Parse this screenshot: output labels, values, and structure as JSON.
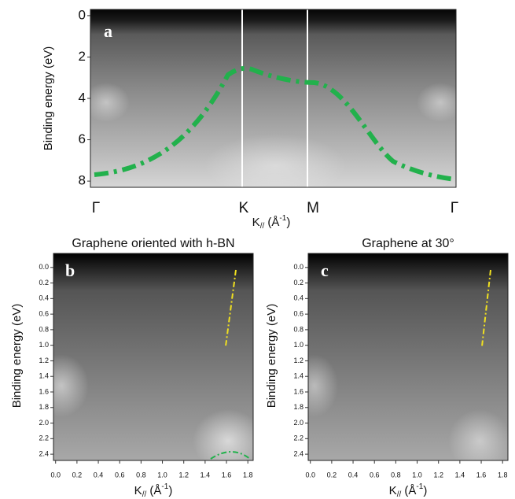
{
  "chart_data": [
    {
      "type": "image",
      "panel_label": "a",
      "categories": [
        "Γ",
        "K",
        "M",
        "Γ"
      ],
      "ylabel": "Binding energy (eV)",
      "xlabel_parts": [
        "K",
        "//",
        " (Å",
        "-1",
        ")"
      ],
      "ylim": [
        -0.3,
        8.3
      ],
      "yticks": [
        0,
        2,
        4,
        6,
        8
      ],
      "y_inverted": true
    },
    {
      "type": "image",
      "panel_label": "b",
      "title": "Graphene oriented with h-BN",
      "ylabel": "Binding energy (eV)",
      "xlabel_parts": [
        "K",
        "//",
        " (Å",
        "-1",
        ")"
      ],
      "ylim": [
        -0.18,
        2.48
      ],
      "y_inverted": true,
      "yticks": [
        {
          "value": 0,
          "label": "0.0"
        },
        0.2,
        0.4,
        0.6,
        0.8,
        {
          "value": 1,
          "label": "1.0"
        },
        1.2,
        1.4,
        1.6,
        1.8,
        {
          "value": 2,
          "label": "2.0"
        },
        2.2,
        2.4
      ],
      "xlim": [
        -0.02,
        1.85
      ],
      "xticks": [
        {
          "value": 0,
          "label": "0.0"
        },
        0.2,
        0.4,
        0.6,
        0.8,
        {
          "value": 1,
          "label": "1.0"
        },
        1.2,
        1.4,
        1.6,
        1.8
      ]
    },
    {
      "type": "image",
      "panel_label": "c",
      "title": "Graphene at 30°",
      "ylabel": "Binding energy (eV)",
      "xlabel_parts": [
        "K",
        "//",
        " (Å",
        "-1",
        ")"
      ],
      "ylim": [
        -0.18,
        2.48
      ],
      "y_inverted": true,
      "yticks": [
        {
          "value": 0,
          "label": "0.0"
        },
        0.2,
        0.4,
        0.6,
        0.8,
        {
          "value": 1,
          "label": "1.0"
        },
        1.2,
        1.4,
        1.6,
        1.8,
        {
          "value": 2,
          "label": "2.0"
        },
        2.2,
        2.4
      ],
      "xlim": [
        -0.02,
        1.85
      ],
      "xticks": [
        {
          "value": 0,
          "label": "0.0"
        },
        0.2,
        0.4,
        0.6,
        0.8,
        {
          "value": 1,
          "label": "1.0"
        },
        1.2,
        1.4,
        1.6,
        1.8
      ]
    }
  ]
}
